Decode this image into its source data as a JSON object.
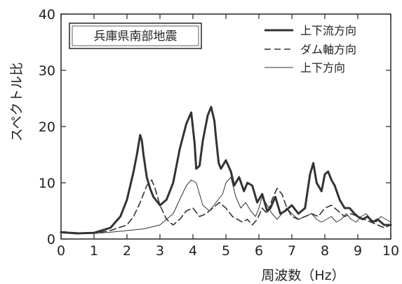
{
  "chart_data": {
    "type": "line",
    "title": "兵庫県南部地震",
    "xlabel": "周波数（Hz）",
    "ylabel": "スペクトル比",
    "xlim": [
      0,
      10
    ],
    "ylim": [
      0,
      40
    ],
    "x_ticks": [
      "0",
      "1",
      "2",
      "3",
      "4",
      "5",
      "6",
      "7",
      "8",
      "9",
      "10"
    ],
    "y_ticks": [
      "0",
      "10",
      "20",
      "30",
      "40"
    ],
    "grid": false,
    "legend_position": "top-right",
    "series": [
      {
        "name": "上下流方向",
        "style": "thick-solid",
        "x": [
          0.0,
          0.5,
          1.0,
          1.5,
          1.8,
          2.0,
          2.2,
          2.3,
          2.4,
          2.45,
          2.5,
          2.6,
          2.7,
          2.8,
          3.0,
          3.2,
          3.4,
          3.6,
          3.8,
          3.95,
          4.05,
          4.1,
          4.2,
          4.3,
          4.45,
          4.55,
          4.65,
          4.7,
          4.78,
          4.85,
          5.0,
          5.15,
          5.25,
          5.4,
          5.55,
          5.65,
          5.8,
          5.95,
          6.1,
          6.25,
          6.35,
          6.5,
          6.65,
          6.8,
          7.0,
          7.2,
          7.4,
          7.55,
          7.65,
          7.75,
          7.9,
          8.0,
          8.1,
          8.2,
          8.3,
          8.45,
          8.6,
          8.75,
          8.9,
          9.0,
          9.15,
          9.3,
          9.45,
          9.6,
          9.8,
          10.0
        ],
        "values": [
          1.2,
          1.0,
          1.1,
          2.0,
          4.0,
          7.0,
          12.0,
          15.0,
          18.5,
          17.5,
          15.0,
          11.0,
          9.0,
          7.5,
          6.0,
          7.0,
          10.0,
          16.0,
          20.5,
          22.5,
          17.0,
          12.5,
          13.0,
          17.5,
          22.0,
          23.5,
          21.0,
          18.0,
          13.5,
          12.5,
          14.0,
          12.0,
          9.5,
          11.0,
          8.5,
          10.0,
          9.5,
          6.5,
          8.0,
          5.0,
          5.5,
          7.5,
          4.5,
          5.0,
          6.0,
          4.5,
          5.5,
          11.5,
          13.5,
          10.0,
          8.5,
          11.5,
          12.0,
          10.5,
          9.5,
          7.0,
          5.5,
          5.5,
          4.5,
          4.0,
          3.5,
          4.0,
          3.0,
          3.5,
          2.5,
          2.5
        ]
      },
      {
        "name": "ダム軸方向",
        "style": "dashed",
        "x": [
          0.0,
          0.5,
          1.0,
          1.5,
          2.0,
          2.2,
          2.4,
          2.6,
          2.75,
          2.85,
          3.0,
          3.2,
          3.4,
          3.6,
          3.8,
          4.0,
          4.2,
          4.4,
          4.6,
          4.8,
          5.0,
          5.2,
          5.35,
          5.5,
          5.65,
          5.8,
          5.95,
          6.1,
          6.25,
          6.4,
          6.55,
          6.7,
          6.85,
          7.0,
          7.2,
          7.4,
          7.6,
          7.8,
          8.0,
          8.2,
          8.4,
          8.6,
          8.8,
          9.0,
          9.2,
          9.4,
          9.6,
          9.8,
          10.0
        ],
        "values": [
          1.3,
          1.1,
          1.0,
          1.5,
          2.5,
          4.0,
          6.5,
          9.5,
          10.5,
          9.0,
          6.0,
          3.5,
          2.5,
          3.5,
          5.0,
          5.5,
          4.0,
          4.5,
          5.5,
          6.5,
          5.5,
          4.0,
          3.5,
          3.0,
          3.5,
          2.5,
          3.5,
          5.5,
          4.5,
          7.0,
          9.0,
          8.0,
          5.5,
          4.0,
          3.5,
          4.0,
          4.5,
          4.0,
          5.5,
          6.0,
          5.0,
          4.0,
          4.5,
          4.0,
          3.5,
          3.0,
          2.5,
          2.0,
          2.5
        ]
      },
      {
        "name": "上下方向",
        "style": "thin-solid",
        "x": [
          0.0,
          0.5,
          1.0,
          1.5,
          2.0,
          2.5,
          3.0,
          3.4,
          3.6,
          3.8,
          3.95,
          4.1,
          4.2,
          4.3,
          4.5,
          4.7,
          4.9,
          5.0,
          5.15,
          5.3,
          5.45,
          5.6,
          5.75,
          5.9,
          6.0,
          6.1,
          6.25,
          6.4,
          6.55,
          6.7,
          6.85,
          7.0,
          7.2,
          7.4,
          7.6,
          7.75,
          7.9,
          8.05,
          8.2,
          8.35,
          8.5,
          8.65,
          8.8,
          8.95,
          9.1,
          9.25,
          9.4,
          9.55,
          9.7,
          9.85,
          10.0
        ],
        "values": [
          1.2,
          1.0,
          1.0,
          1.2,
          1.5,
          1.8,
          2.5,
          4.5,
          7.0,
          9.5,
          10.5,
          10.0,
          8.0,
          6.0,
          5.0,
          6.5,
          8.0,
          10.0,
          11.0,
          7.5,
          5.5,
          6.5,
          5.0,
          4.0,
          5.5,
          7.5,
          6.0,
          4.5,
          3.5,
          4.5,
          5.5,
          4.5,
          3.5,
          4.0,
          4.5,
          3.5,
          3.0,
          3.5,
          4.0,
          3.0,
          3.5,
          4.5,
          3.5,
          3.0,
          4.0,
          4.5,
          3.5,
          3.0,
          4.0,
          3.5,
          3.0
        ]
      }
    ]
  }
}
